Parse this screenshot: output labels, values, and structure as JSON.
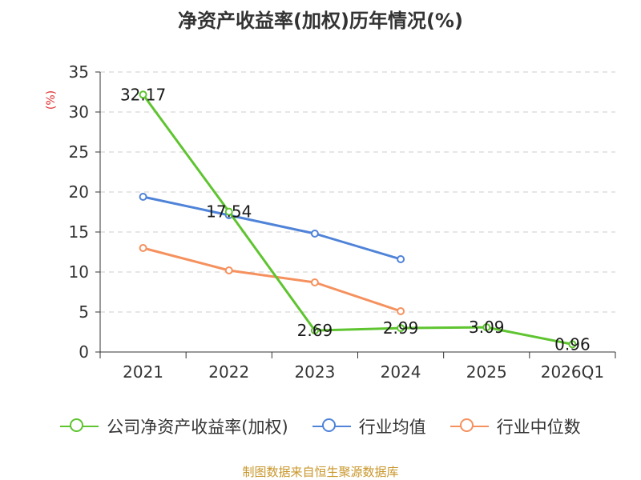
{
  "chart_data": {
    "type": "line",
    "title": "净资产收益率(加权)历年情况(%)",
    "ylabel": "(%)",
    "xlabel": "",
    "categories": [
      "2021",
      "2022",
      "2023",
      "2024",
      "2025",
      "2026Q1"
    ],
    "ylim": [
      0,
      35
    ],
    "yticks": [
      0,
      5,
      10,
      15,
      20,
      25,
      30,
      35
    ],
    "grid": true,
    "legend_position": "bottom",
    "series": [
      {
        "name": "公司净资产收益率(加权)",
        "color": "#5ec42f",
        "values": [
          32.17,
          17.54,
          2.69,
          2.99,
          3.09,
          0.96
        ],
        "labels": true
      },
      {
        "name": "行业均值",
        "color": "#4f83d8",
        "values": [
          19.4,
          17.1,
          14.8,
          11.6,
          null,
          null
        ],
        "labels": false
      },
      {
        "name": "行业中位数",
        "color": "#f5915e",
        "values": [
          13.0,
          10.2,
          8.7,
          5.1,
          null,
          null
        ],
        "labels": false
      }
    ]
  },
  "source_text": "制图数据来自恒生聚源数据库"
}
